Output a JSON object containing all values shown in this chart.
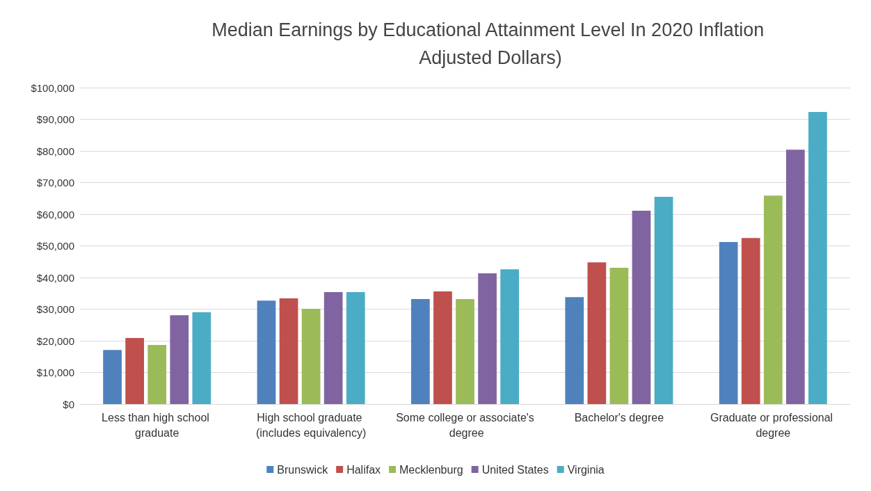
{
  "chart_data": {
    "type": "bar",
    "title": "Median Earnings by Educational Attainment Level In 2020 Inflation Adjusted Dollars)",
    "categories": [
      "Less than high school graduate",
      "High school graduate (includes equivalency)",
      "Some college or associate's degree",
      "Bachelor's degree",
      "Graduate or professional degree"
    ],
    "series": [
      {
        "name": "Brunswick",
        "color": "#4f81bd",
        "values": [
          17100,
          32700,
          33200,
          33800,
          51200
        ]
      },
      {
        "name": "Halifax",
        "color": "#c0504d",
        "values": [
          20900,
          33400,
          35600,
          44800,
          52500
        ]
      },
      {
        "name": "Mecklenburg",
        "color": "#9bbb59",
        "values": [
          18700,
          30100,
          33200,
          43100,
          65900
        ]
      },
      {
        "name": "United States",
        "color": "#8064a2",
        "values": [
          28100,
          35400,
          41300,
          61100,
          80400
        ]
      },
      {
        "name": "Virginia",
        "color": "#4bacc6",
        "values": [
          29000,
          35400,
          42600,
          65500,
          92300
        ]
      }
    ],
    "ylim": [
      0,
      100000
    ],
    "yticks": [
      {
        "value": 0,
        "label": "$0"
      },
      {
        "value": 10000,
        "label": "$10,000"
      },
      {
        "value": 20000,
        "label": "$20,000"
      },
      {
        "value": 30000,
        "label": "$30,000"
      },
      {
        "value": 40000,
        "label": "$40,000"
      },
      {
        "value": 50000,
        "label": "$50,000"
      },
      {
        "value": 60000,
        "label": "$60,000"
      },
      {
        "value": 70000,
        "label": "$70,000"
      },
      {
        "value": 80000,
        "label": "$80,000"
      },
      {
        "value": 90000,
        "label": "$90,000"
      },
      {
        "value": 100000,
        "label": "$100,000"
      }
    ],
    "grid": "y",
    "legend": "bottom"
  }
}
